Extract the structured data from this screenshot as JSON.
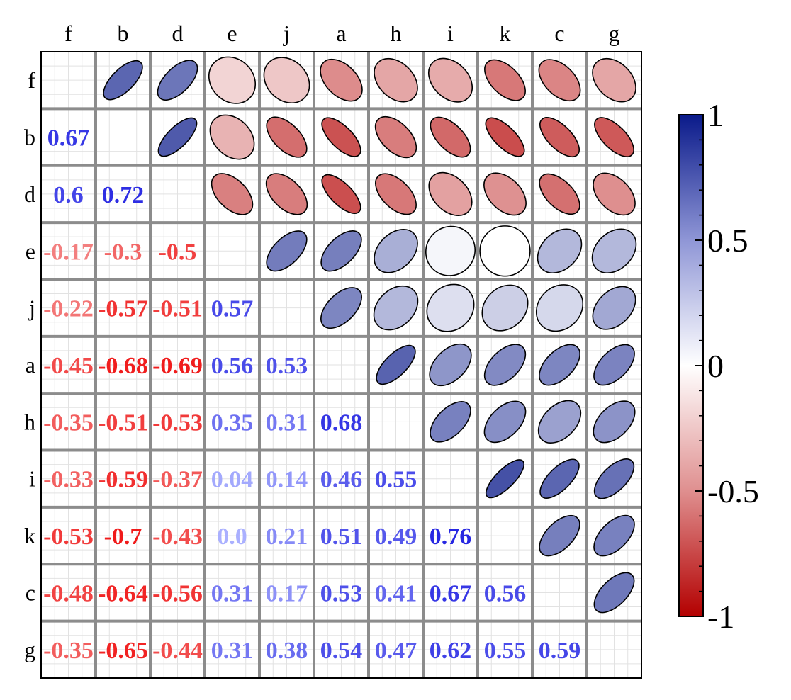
{
  "chart_data": {
    "type": "heatmap",
    "variables": [
      "f",
      "b",
      "d",
      "e",
      "j",
      "a",
      "h",
      "i",
      "k",
      "c",
      "g"
    ],
    "matrix": [
      [
        1,
        0.67,
        0.6,
        -0.17,
        -0.22,
        -0.45,
        -0.35,
        -0.33,
        -0.53,
        -0.48,
        -0.35
      ],
      [
        0.67,
        1,
        0.72,
        -0.3,
        -0.57,
        -0.68,
        -0.51,
        -0.59,
        -0.7,
        -0.64,
        -0.65
      ],
      [
        0.6,
        0.72,
        1,
        -0.5,
        -0.51,
        -0.69,
        -0.53,
        -0.37,
        -0.43,
        -0.56,
        -0.44
      ],
      [
        -0.17,
        -0.3,
        -0.5,
        1,
        0.57,
        0.56,
        0.35,
        0.04,
        0.0,
        0.31,
        0.31
      ],
      [
        -0.22,
        -0.57,
        -0.51,
        0.57,
        1,
        0.53,
        0.31,
        0.14,
        0.21,
        0.17,
        0.38
      ],
      [
        -0.45,
        -0.68,
        -0.69,
        0.56,
        0.53,
        1,
        0.68,
        0.46,
        0.51,
        0.53,
        0.54
      ],
      [
        -0.35,
        -0.51,
        -0.53,
        0.35,
        0.31,
        0.68,
        1,
        0.55,
        0.49,
        0.41,
        0.47
      ],
      [
        -0.33,
        -0.59,
        -0.37,
        0.04,
        0.14,
        0.46,
        0.55,
        1,
        0.76,
        0.67,
        0.62
      ],
      [
        -0.53,
        -0.7,
        -0.43,
        0.0,
        0.21,
        0.51,
        0.49,
        0.76,
        1,
        0.56,
        0.55
      ],
      [
        -0.48,
        -0.64,
        -0.56,
        0.31,
        0.17,
        0.53,
        0.41,
        0.67,
        0.56,
        1,
        0.59
      ],
      [
        -0.35,
        -0.65,
        -0.44,
        0.31,
        0.38,
        0.54,
        0.47,
        0.62,
        0.55,
        0.59,
        1
      ]
    ],
    "lower_triangle": "numbers",
    "upper_triangle": "ellipses",
    "colorbar": {
      "range": [
        -1,
        1
      ],
      "tick_labels": [
        "1",
        "0.5",
        "0",
        "-0.5",
        "-1"
      ],
      "tick_values": [
        1,
        0.5,
        0,
        -0.5,
        -1
      ]
    },
    "colors": {
      "positive": "#0a1a8a",
      "neutral": "#ffffff",
      "negative": "#b30000",
      "grid": "#8c8c8c"
    }
  }
}
